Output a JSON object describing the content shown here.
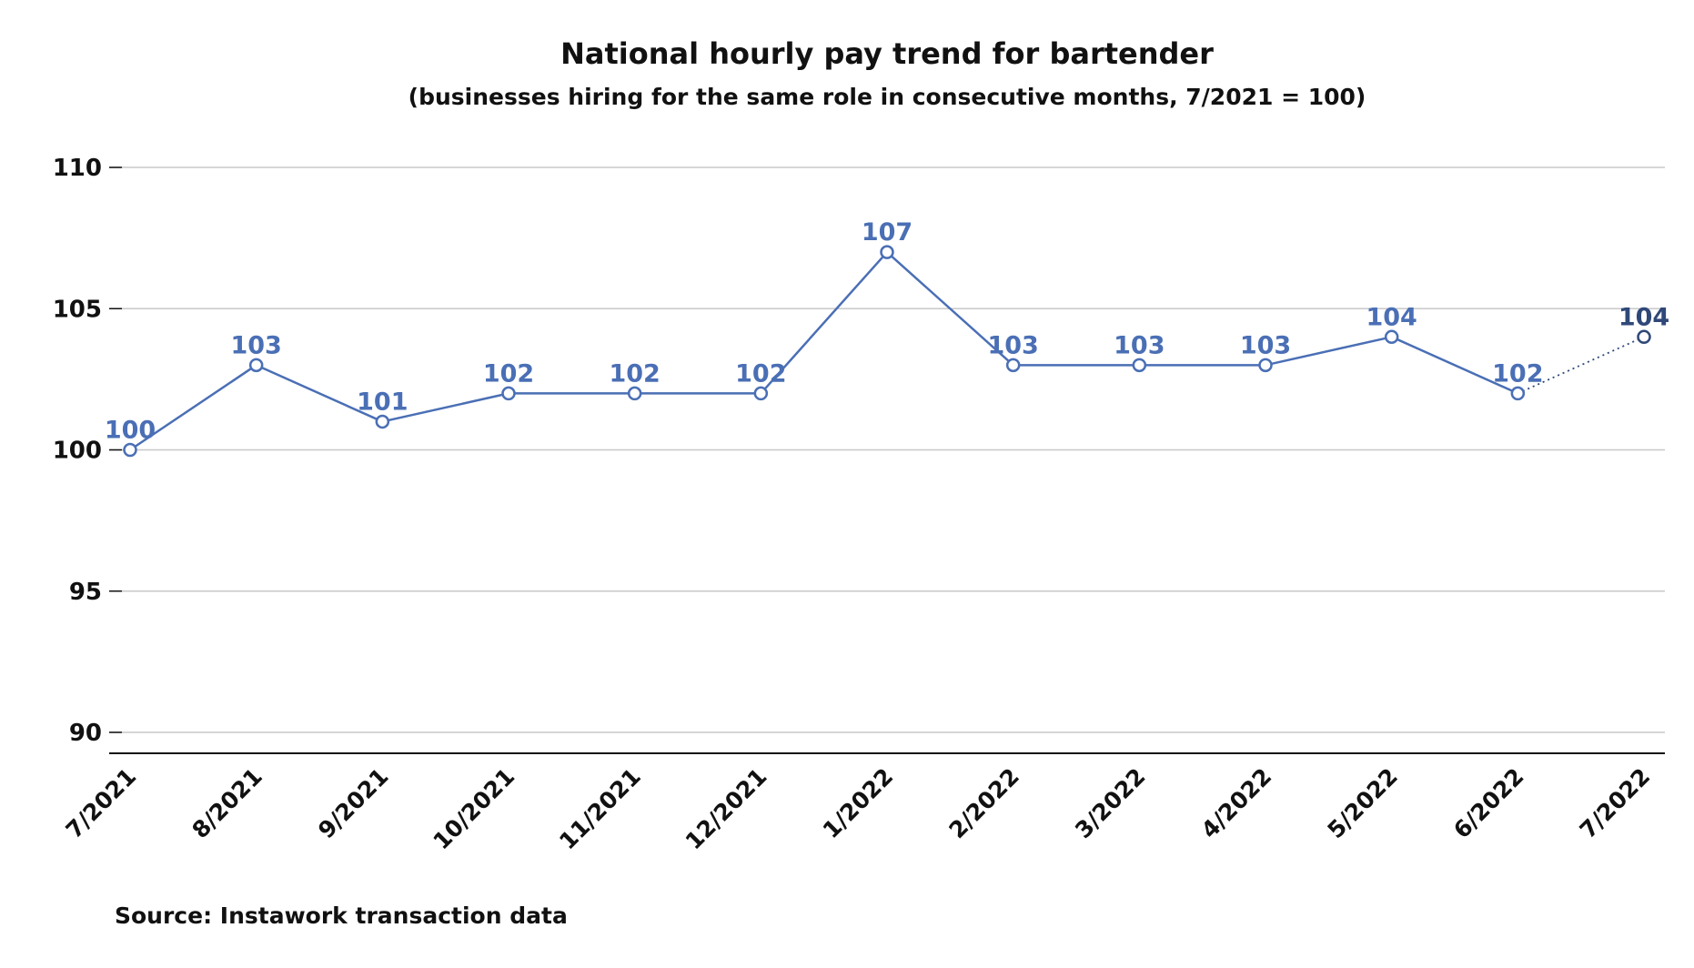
{
  "chart_data": {
    "type": "line",
    "title": "National hourly pay trend for bartender",
    "subtitle": "(businesses hiring for the same role in consecutive months, 7/2021 = 100)",
    "categories": [
      "7/2021",
      "8/2021",
      "9/2021",
      "10/2021",
      "11/2021",
      "12/2021",
      "1/2022",
      "2/2022",
      "3/2022",
      "4/2022",
      "5/2022",
      "6/2022",
      "7/2022"
    ],
    "series": [
      {
        "values": [
          100,
          103,
          101,
          102,
          102,
          102,
          107,
          103,
          103,
          103,
          104,
          102,
          104
        ],
        "data_labels": [
          "100",
          "103",
          "101",
          "102",
          "102",
          "102",
          "107",
          "103",
          "103",
          "103",
          "104",
          "102",
          "104"
        ],
        "color": "#4a6fb5",
        "last_segment_style": "dotted",
        "last_point_color": "#2f4878"
      }
    ],
    "ylim": [
      90,
      110
    ],
    "yticks": [
      90,
      95,
      100,
      105,
      110
    ],
    "ytick_labels": [
      "90",
      "95",
      "100",
      "105",
      "110"
    ],
    "xlabel": "",
    "ylabel": "",
    "grid": true,
    "legend": "none"
  },
  "source_note": "Source: Instawork transaction data"
}
